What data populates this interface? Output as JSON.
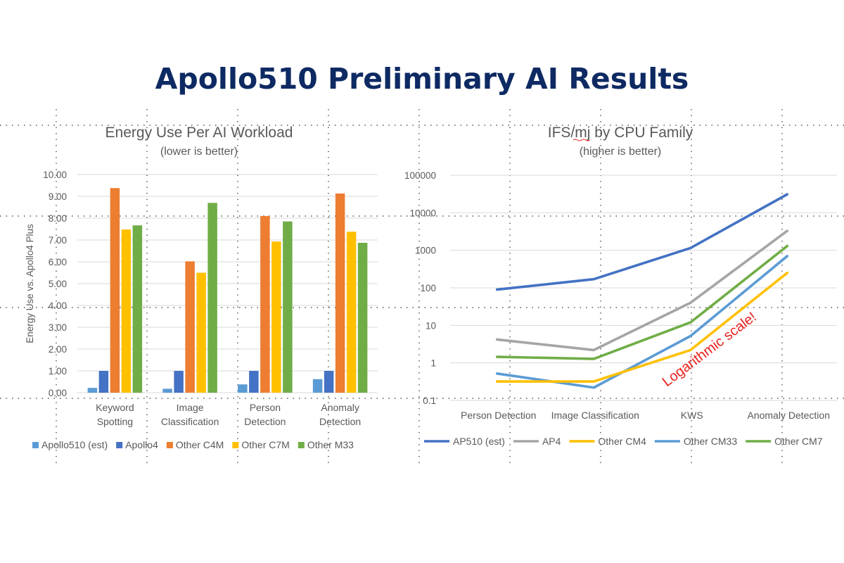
{
  "page": {
    "title": "Apollo510 Preliminary AI Results"
  },
  "chart_data": [
    {
      "type": "bar",
      "title": "Energy Use Per AI Workload",
      "subtitle": "(lower is better)",
      "xlabel": "",
      "ylabel": "Energy Use vs. Apollo4 Plus",
      "ylim": [
        0,
        10
      ],
      "yticks": [
        "0.00",
        "1.00",
        "2.00",
        "3.00",
        "4.00",
        "5.00",
        "6.00",
        "7.00",
        "8.00",
        "9.00",
        "10.00"
      ],
      "categories": [
        [
          "Keyword",
          "Spotting"
        ],
        [
          "Image",
          "Classification"
        ],
        [
          "Person",
          "Detection"
        ],
        [
          "Anomaly",
          "Detection"
        ]
      ],
      "series": [
        {
          "name": "Apollo510 (est)",
          "color": "#5b9bd5",
          "values": [
            0.22,
            0.18,
            0.38,
            0.62
          ]
        },
        {
          "name": "Apollo4",
          "color": "#4472c4",
          "values": [
            1.0,
            1.0,
            1.0,
            1.0
          ]
        },
        {
          "name": "Other C4M",
          "color": "#ed7d31",
          "values": [
            9.38,
            6.02,
            8.1,
            9.13
          ]
        },
        {
          "name": "Other C7M",
          "color": "#ffc000",
          "values": [
            7.48,
            5.5,
            6.93,
            7.38
          ]
        },
        {
          "name": "Other M33",
          "color": "#70ad47",
          "values": [
            7.67,
            8.7,
            7.85,
            6.87
          ]
        }
      ],
      "legend": "bottom"
    },
    {
      "type": "line",
      "title": "IFS/mj by CPU Family",
      "subtitle": "(higher is better)",
      "yscale": "log",
      "ylim": [
        0.1,
        100000
      ],
      "yticks": [
        "0.1",
        "1",
        "10",
        "100",
        "1000",
        "10000",
        "100000"
      ],
      "categories": [
        "Person Detection",
        "Image Classification",
        "KWS",
        "Anomaly Detection"
      ],
      "series": [
        {
          "name": "AP510 (est)",
          "color": "#4472c4",
          "values": [
            90,
            170,
            1150,
            31000
          ]
        },
        {
          "name": "AP4",
          "color": "#a5a5a5",
          "values": [
            4.2,
            2.2,
            40,
            3300
          ]
        },
        {
          "name": "Other CM4",
          "color": "#ffc000",
          "values": [
            0.32,
            0.32,
            2.2,
            250
          ]
        },
        {
          "name": "Other CM33",
          "color": "#5b9bd5",
          "values": [
            0.52,
            0.22,
            5.2,
            700
          ]
        },
        {
          "name": "Other CM7",
          "color": "#70ad47",
          "values": [
            1.45,
            1.28,
            12,
            1300
          ]
        }
      ],
      "annotation": "Logarithmic scale!",
      "legend": "bottom"
    }
  ]
}
